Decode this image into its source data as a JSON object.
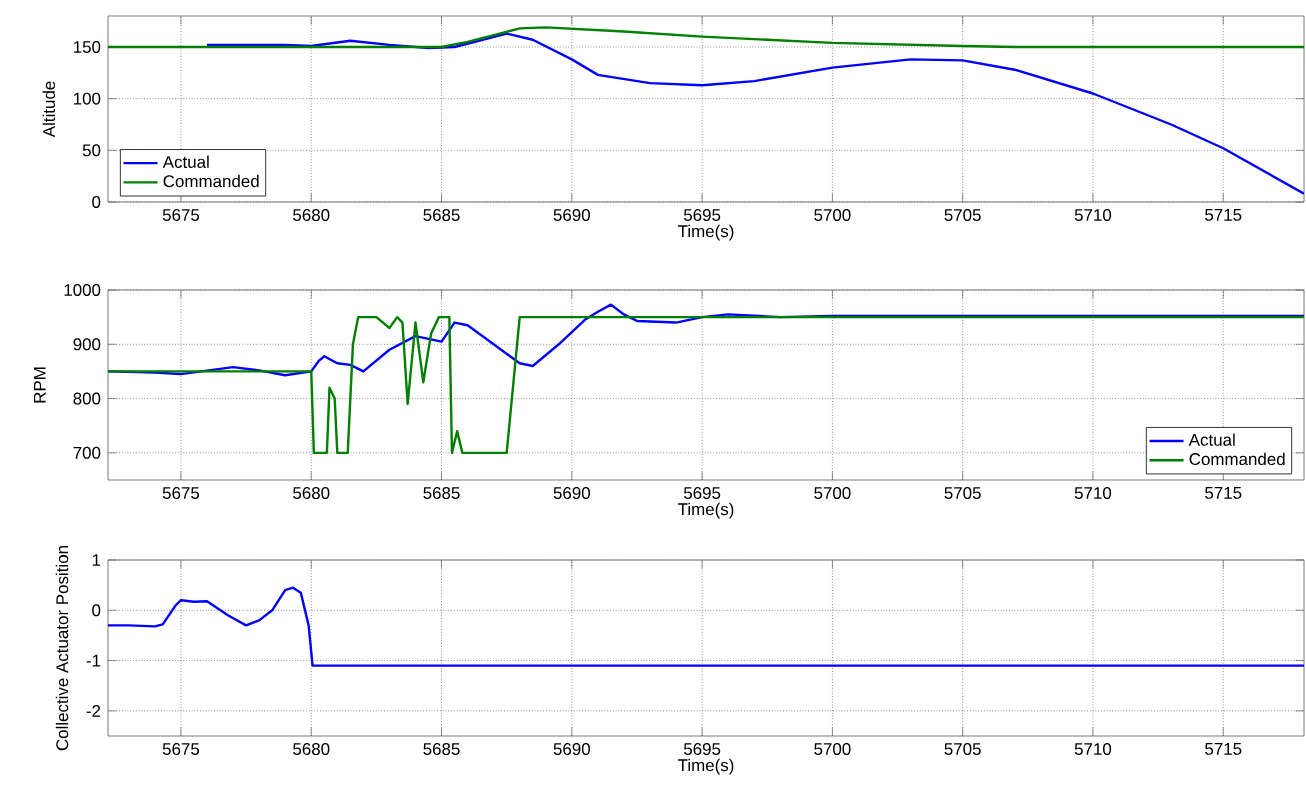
{
  "chart_data": [
    {
      "type": "line",
      "ylabel": "Altitude",
      "xlabel": "Time(s)",
      "xlim": [
        5672.2,
        5718.1
      ],
      "xticks": [
        5675,
        5680,
        5685,
        5690,
        5695,
        5700,
        5705,
        5710,
        5715
      ],
      "ylim": [
        0,
        180
      ],
      "yticks": [
        0,
        50,
        100,
        150
      ],
      "grid": true,
      "legend": "bottom left",
      "series": [
        {
          "name": "Actual",
          "color": "#0000ff",
          "x": [
            5676,
            5679,
            5680,
            5681.5,
            5683,
            5684.5,
            5685.5,
            5687.5,
            5688.5,
            5690,
            5691,
            5693,
            5695,
            5697,
            5700,
            5703,
            5705,
            5707,
            5710,
            5713,
            5715,
            5718.1
          ],
          "values": [
            152,
            152,
            151,
            156,
            152,
            149,
            150,
            163,
            157,
            138,
            123,
            115,
            113,
            117,
            130,
            138,
            137,
            128,
            105,
            75,
            52,
            8
          ]
        },
        {
          "name": "Commanded",
          "color": "#007f00",
          "x": [
            5672.2,
            5685,
            5686,
            5688,
            5689,
            5692,
            5695,
            5700,
            5705,
            5707,
            5718.1
          ],
          "values": [
            150,
            150,
            155,
            168,
            169,
            165,
            160,
            154,
            151,
            150,
            150
          ]
        }
      ]
    },
    {
      "type": "line",
      "ylabel": "RPM",
      "xlabel": "Time(s)",
      "xlim": [
        5672.2,
        5718.1
      ],
      "xticks": [
        5675,
        5680,
        5685,
        5690,
        5695,
        5700,
        5705,
        5710,
        5715
      ],
      "ylim": [
        650,
        1000
      ],
      "yticks": [
        700,
        800,
        900,
        1000
      ],
      "grid": true,
      "legend": "bottom right",
      "series": [
        {
          "name": "Actual",
          "color": "#0000ff",
          "x": [
            5672.2,
            5674,
            5675,
            5677,
            5678,
            5679,
            5680,
            5680.3,
            5680.5,
            5681,
            5681.5,
            5682,
            5683,
            5684,
            5685,
            5685.5,
            5686,
            5687,
            5688,
            5688.5,
            5689.5,
            5690.5,
            5691,
            5691.5,
            5692,
            5692.5,
            5694,
            5695,
            5696,
            5698,
            5700,
            5718.1
          ],
          "values": [
            850,
            848,
            845,
            858,
            852,
            843,
            850,
            870,
            878,
            865,
            862,
            850,
            890,
            915,
            905,
            940,
            935,
            900,
            865,
            860,
            900,
            945,
            960,
            973,
            955,
            943,
            940,
            950,
            955,
            950,
            952,
            952
          ]
        },
        {
          "name": "Commanded",
          "color": "#007f00",
          "x": [
            5672.2,
            5680,
            5680.1,
            5680.6,
            5680.7,
            5680.9,
            5681,
            5681.4,
            5681.6,
            5681.8,
            5682.5,
            5683,
            5683.3,
            5683.5,
            5683.7,
            5684,
            5684.3,
            5684.6,
            5684.9,
            5685.3,
            5685.4,
            5685.6,
            5685.8,
            5687.5,
            5687.8,
            5688,
            5718.1
          ],
          "values": [
            850,
            850,
            700,
            700,
            820,
            800,
            700,
            700,
            900,
            950,
            950,
            930,
            950,
            940,
            790,
            940,
            830,
            920,
            950,
            950,
            700,
            740,
            700,
            700,
            850,
            950,
            950
          ]
        }
      ]
    },
    {
      "type": "line",
      "ylabel": "Collective Actuator Position",
      "xlabel": "Time(s)",
      "xlim": [
        5672.2,
        5718.1
      ],
      "xticks": [
        5675,
        5680,
        5685,
        5690,
        5695,
        5700,
        5705,
        5710,
        5715
      ],
      "ylim": [
        -2.5,
        1
      ],
      "yticks": [
        -2,
        -1,
        0,
        1
      ],
      "grid": true,
      "series": [
        {
          "color": "#0000ff",
          "x": [
            5672.2,
            5673,
            5674,
            5674.3,
            5674.8,
            5675,
            5675.5,
            5676,
            5676.8,
            5677.5,
            5678,
            5678.5,
            5679,
            5679.3,
            5679.6,
            5679.9,
            5680.05,
            5718.1
          ],
          "values": [
            -0.3,
            -0.3,
            -0.32,
            -0.28,
            0.1,
            0.2,
            0.17,
            0.18,
            -0.1,
            -0.3,
            -0.2,
            0,
            0.4,
            0.45,
            0.35,
            -0.3,
            -1.1,
            -1.1
          ]
        }
      ]
    }
  ]
}
